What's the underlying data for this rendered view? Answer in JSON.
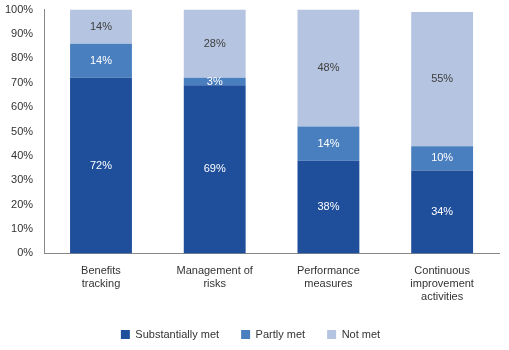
{
  "chart_data": {
    "type": "bar",
    "stacked": true,
    "data_labels": true,
    "legend": "bottom",
    "grid": false,
    "categories": [
      "Benefits tracking",
      "Management of risks",
      "Performance measures",
      "Continuous improvement activities"
    ],
    "series": [
      {
        "name": "Substantially met",
        "color": "#1f4e9b",
        "values": [
          72,
          69,
          38,
          34
        ],
        "value_labels": [
          "72%",
          "69%",
          "38%",
          "34%"
        ]
      },
      {
        "name": "Partly met",
        "color": "#4a7fbf",
        "values": [
          14,
          3,
          14,
          10
        ],
        "value_labels": [
          "14%",
          "3%",
          "14%",
          "10%"
        ]
      },
      {
        "name": "Not met",
        "color": "#b5c4e0",
        "values": [
          14,
          28,
          48,
          55
        ],
        "value_labels": [
          "14%",
          "28%",
          "48%",
          "55%"
        ]
      }
    ],
    "ylim": [
      0,
      100
    ],
    "yticks": [
      {
        "value": 0,
        "label": "0%"
      },
      {
        "value": 10,
        "label": "10%"
      },
      {
        "value": 20,
        "label": "20%"
      },
      {
        "value": 30,
        "label": "30%"
      },
      {
        "value": 40,
        "label": "40%"
      },
      {
        "value": 50,
        "label": "50%"
      },
      {
        "value": 60,
        "label": "60%"
      },
      {
        "value": 70,
        "label": "70%"
      },
      {
        "value": 80,
        "label": "80%"
      },
      {
        "value": 90,
        "label": "90%"
      },
      {
        "value": 100,
        "label": "100%"
      }
    ]
  }
}
